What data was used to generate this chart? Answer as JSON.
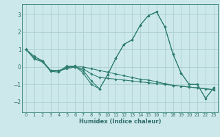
{
  "title": "",
  "xlabel": "Humidex (Indice chaleur)",
  "ylabel": "",
  "background_color": "#cce8eb",
  "grid_color": "#aecfd2",
  "line_color": "#2e7d70",
  "xlim": [
    -0.5,
    23.5
  ],
  "ylim": [
    -2.6,
    3.6
  ],
  "yticks": [
    -2,
    -1,
    0,
    1,
    2,
    3
  ],
  "xticks": [
    0,
    1,
    2,
    3,
    4,
    5,
    6,
    7,
    8,
    9,
    10,
    11,
    12,
    13,
    14,
    15,
    16,
    17,
    18,
    19,
    20,
    21,
    22,
    23
  ],
  "series": [
    [
      1.0,
      0.6,
      0.35,
      -0.2,
      -0.2,
      -0.05,
      0.05,
      -0.35,
      -1.0,
      -1.25,
      -0.45,
      0.5,
      1.3,
      1.55,
      2.4,
      2.95,
      3.15,
      2.3,
      0.75,
      -0.35,
      -1.0,
      -1.0,
      -1.8,
      -1.2
    ],
    [
      1.0,
      0.6,
      0.35,
      -0.2,
      -0.22,
      -0.1,
      0.0,
      -0.2,
      -0.8,
      -1.25,
      -0.45,
      0.5,
      1.3,
      1.55,
      2.4,
      2.95,
      3.15,
      2.3,
      0.75,
      -0.35,
      -1.0,
      -1.0,
      -1.8,
      -1.2
    ],
    [
      1.0,
      0.45,
      0.3,
      -0.2,
      -0.25,
      0.05,
      0.05,
      0.0,
      -0.1,
      -0.2,
      -0.3,
      -0.4,
      -0.5,
      -0.6,
      -0.7,
      -0.75,
      -0.85,
      -0.95,
      -1.05,
      -1.1,
      -1.15,
      -1.2,
      -1.25,
      -1.3
    ],
    [
      1.0,
      0.5,
      0.3,
      -0.25,
      -0.3,
      0.0,
      0.0,
      -0.1,
      -0.4,
      -0.6,
      -0.65,
      -0.7,
      -0.75,
      -0.8,
      -0.85,
      -0.9,
      -0.95,
      -1.0,
      -1.05,
      -1.1,
      -1.15,
      -1.2,
      -1.25,
      -1.3
    ]
  ]
}
